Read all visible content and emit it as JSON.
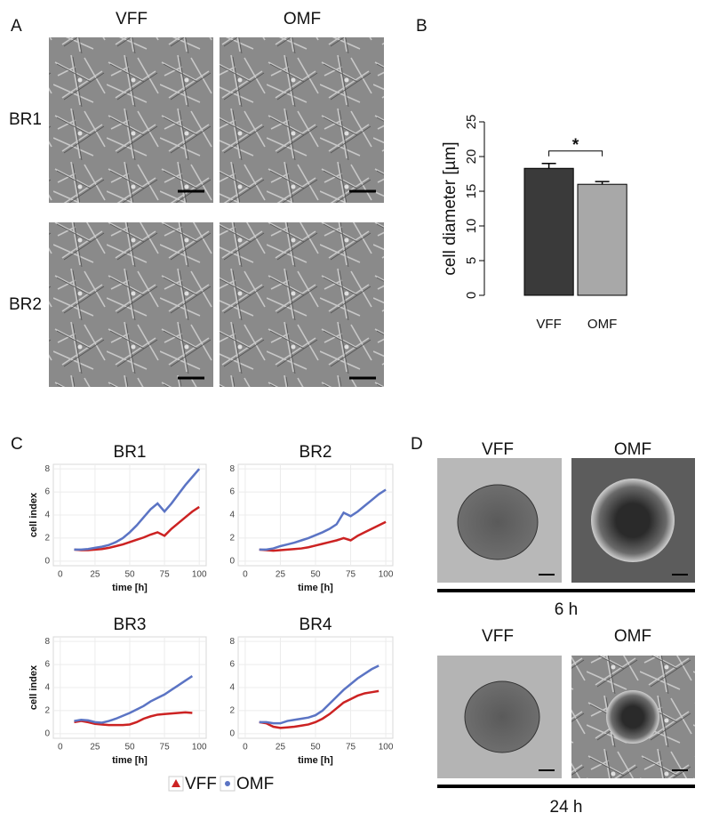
{
  "panel_labels": [
    "A",
    "B",
    "C",
    "D"
  ],
  "panel_a": {
    "columns": [
      "VFF",
      "OMF"
    ],
    "rows": [
      "BR1",
      "BR2"
    ]
  },
  "panel_d": {
    "columns": [
      "VFF",
      "OMF",
      "VFF",
      "OMF"
    ],
    "times": [
      "6 h",
      "24 h"
    ]
  },
  "chart_data": [
    {
      "type": "bar",
      "categories": [
        "VFF",
        "OMF"
      ],
      "values": [
        18.3,
        16.0
      ],
      "errors": [
        0.7,
        0.4
      ],
      "colors": [
        "#3a3a3a",
        "#a8a8a8"
      ],
      "y_label": "cell diameter [µm]",
      "ylim": [
        0,
        25
      ],
      "yticks": [
        0,
        5,
        10,
        15,
        20,
        25
      ],
      "annotation": "*"
    },
    {
      "type": "line",
      "title": "BR1",
      "x_label": "time [h]",
      "y_label": "cell index",
      "x": [
        10,
        15,
        20,
        25,
        30,
        35,
        40,
        45,
        50,
        55,
        60,
        65,
        70,
        75,
        80,
        85,
        90,
        95,
        100
      ],
      "series": [
        {
          "name": "VFF",
          "color": "#cc2222",
          "values": [
            1,
            0.95,
            0.95,
            1.0,
            1.05,
            1.15,
            1.3,
            1.45,
            1.65,
            1.85,
            2.05,
            2.3,
            2.5,
            2.2,
            2.8,
            3.3,
            3.8,
            4.3,
            4.7
          ]
        },
        {
          "name": "OMF",
          "color": "#5b74c4",
          "values": [
            1,
            1,
            1.05,
            1.15,
            1.25,
            1.4,
            1.65,
            2.0,
            2.5,
            3.1,
            3.8,
            4.5,
            5.0,
            4.3,
            5.0,
            5.8,
            6.6,
            7.3,
            8.0
          ]
        }
      ],
      "xlim": [
        -5,
        105
      ],
      "xticks": [
        0,
        25,
        50,
        75,
        100
      ],
      "ylim": [
        -0.4,
        8.4
      ],
      "yticks": [
        0,
        2,
        4,
        6,
        8
      ],
      "grid": true
    },
    {
      "type": "line",
      "title": "BR2",
      "x_label": "time [h]",
      "x": [
        10,
        15,
        20,
        25,
        30,
        35,
        40,
        45,
        50,
        55,
        60,
        65,
        70,
        75,
        80,
        85,
        90,
        95,
        100
      ],
      "series": [
        {
          "name": "VFF",
          "color": "#cc2222",
          "values": [
            1,
            0.95,
            0.9,
            0.95,
            1.0,
            1.05,
            1.1,
            1.2,
            1.35,
            1.5,
            1.65,
            1.8,
            2.0,
            1.8,
            2.2,
            2.5,
            2.8,
            3.1,
            3.4
          ]
        },
        {
          "name": "OMF",
          "color": "#5b74c4",
          "values": [
            1,
            1,
            1.1,
            1.3,
            1.45,
            1.6,
            1.8,
            2.0,
            2.25,
            2.5,
            2.8,
            3.2,
            4.2,
            3.9,
            4.3,
            4.8,
            5.3,
            5.8,
            6.2
          ]
        }
      ],
      "xlim": [
        -5,
        105
      ],
      "xticks": [
        0,
        25,
        50,
        75,
        100
      ],
      "ylim": [
        -0.4,
        8.4
      ],
      "yticks": [
        0,
        2,
        4,
        6,
        8
      ],
      "grid": true
    },
    {
      "type": "line",
      "title": "BR3",
      "x_label": "time [h]",
      "y_label": "cell index",
      "x": [
        10,
        15,
        20,
        25,
        30,
        35,
        40,
        45,
        50,
        55,
        60,
        65,
        70,
        75,
        80,
        85,
        90,
        95
      ],
      "series": [
        {
          "name": "VFF",
          "color": "#cc2222",
          "values": [
            1.0,
            1.1,
            1.0,
            0.85,
            0.8,
            0.75,
            0.75,
            0.75,
            0.8,
            1.0,
            1.3,
            1.5,
            1.65,
            1.7,
            1.75,
            1.8,
            1.85,
            1.8
          ]
        },
        {
          "name": "OMF",
          "color": "#5b74c4",
          "values": [
            1.1,
            1.2,
            1.15,
            1.0,
            0.95,
            1.1,
            1.3,
            1.55,
            1.8,
            2.1,
            2.4,
            2.8,
            3.1,
            3.4,
            3.8,
            4.2,
            4.6,
            5.0
          ]
        }
      ],
      "xlim": [
        -5,
        105
      ],
      "xticks": [
        0,
        25,
        50,
        75,
        100
      ],
      "ylim": [
        -0.4,
        8.4
      ],
      "yticks": [
        0,
        2,
        4,
        6,
        8
      ],
      "grid": true
    },
    {
      "type": "line",
      "title": "BR4",
      "x_label": "time [h]",
      "x": [
        10,
        15,
        20,
        25,
        30,
        35,
        40,
        45,
        50,
        55,
        60,
        65,
        70,
        75,
        80,
        85,
        90,
        95
      ],
      "series": [
        {
          "name": "VFF",
          "color": "#cc2222",
          "values": [
            1.0,
            0.9,
            0.6,
            0.5,
            0.55,
            0.6,
            0.7,
            0.8,
            1.0,
            1.3,
            1.7,
            2.2,
            2.7,
            3.0,
            3.3,
            3.5,
            3.6,
            3.7
          ]
        },
        {
          "name": "OMF",
          "color": "#5b74c4",
          "values": [
            1.0,
            1.0,
            0.9,
            0.9,
            1.1,
            1.2,
            1.3,
            1.4,
            1.6,
            2.0,
            2.6,
            3.2,
            3.8,
            4.3,
            4.8,
            5.2,
            5.6,
            5.9
          ]
        }
      ],
      "xlim": [
        -5,
        105
      ],
      "xticks": [
        0,
        25,
        50,
        75,
        100
      ],
      "ylim": [
        -0.4,
        8.4
      ],
      "yticks": [
        0,
        2,
        4,
        6,
        8
      ],
      "grid": true
    }
  ]
}
